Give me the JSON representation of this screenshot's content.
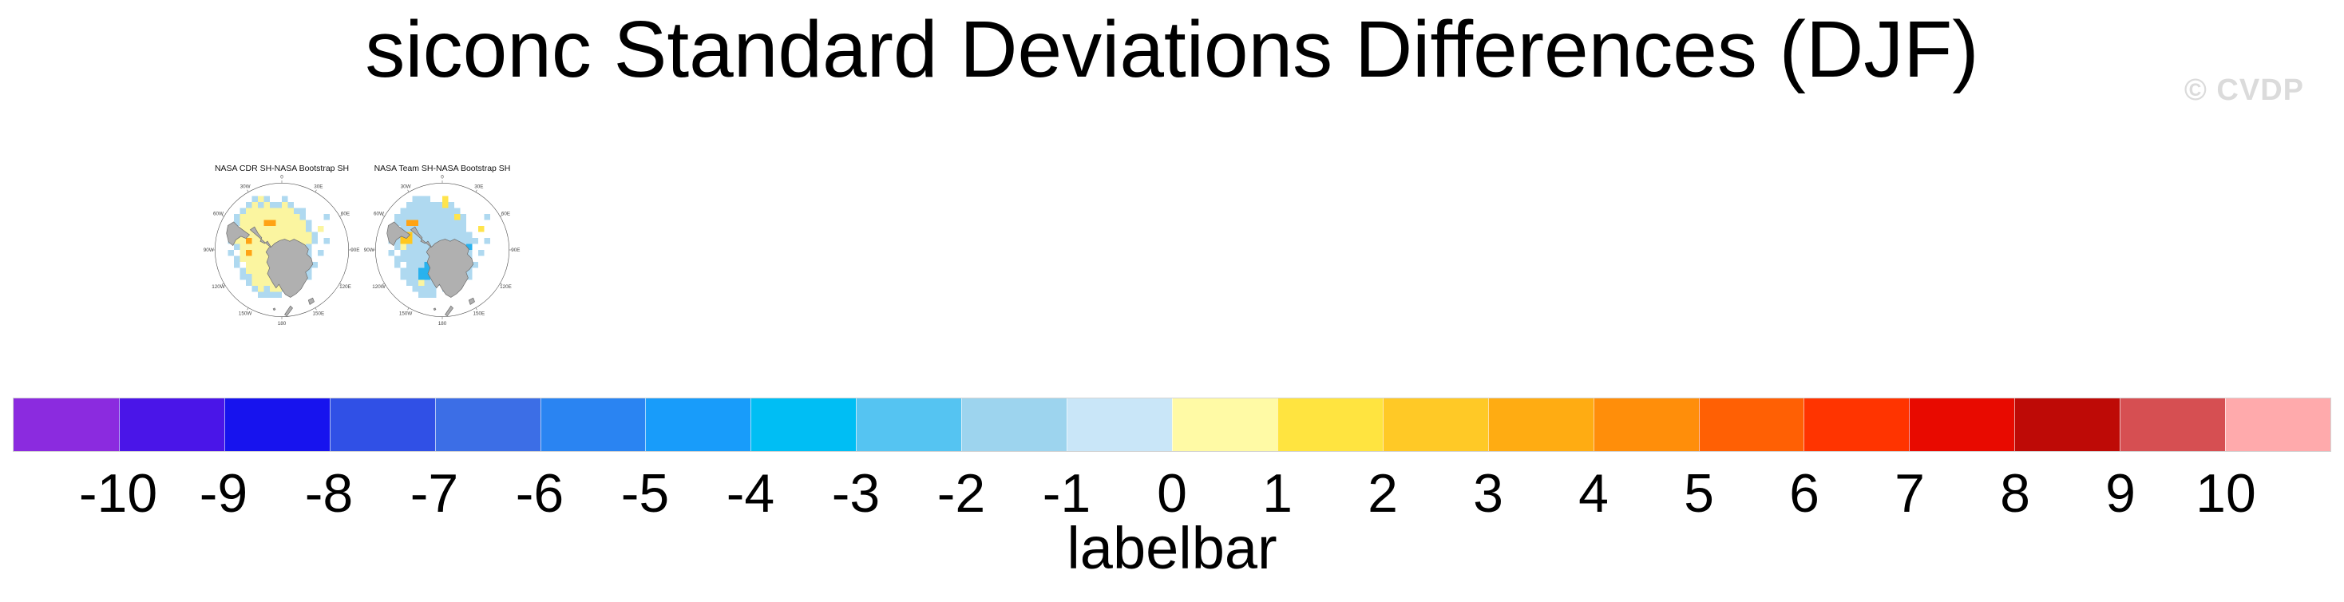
{
  "title": "siconc Standard Deviations Differences (DJF)",
  "watermark": "© CVDP",
  "chart_data": {
    "type": "heatmap",
    "title": "siconc Standard Deviations Differences (DJF)",
    "season": "DJF",
    "variable": "siconc",
    "projection": "south-polar-stereographic",
    "lon_labels": [
      {
        "text": "0",
        "angle_deg": 0
      },
      {
        "text": "30E",
        "angle_deg": 30
      },
      {
        "text": "60E",
        "angle_deg": 60
      },
      {
        "text": "90E",
        "angle_deg": 90
      },
      {
        "text": "120E",
        "angle_deg": 120
      },
      {
        "text": "150E",
        "angle_deg": 150
      },
      {
        "text": "180",
        "angle_deg": 180
      },
      {
        "text": "150W",
        "angle_deg": 210
      },
      {
        "text": "120W",
        "angle_deg": 240
      },
      {
        "text": "90W",
        "angle_deg": 270
      },
      {
        "text": "60W",
        "angle_deg": 300
      },
      {
        "text": "30W",
        "angle_deg": 330
      }
    ],
    "cell_colors": {
      "y": "#FBF5A0",
      "Y": "#FFE44C",
      "g": "#FFC71E",
      "o": "#FFA314",
      "r": "#FF4A00",
      "b": "#AFD9F0",
      "B": "#29B2EE"
    },
    "geo_colors": {
      "land_fill": "#B0B0B0",
      "land_outline": "#6E6E6E",
      "circle_stroke": "#555555",
      "label_color": "#444444"
    },
    "panels": [
      {
        "title": "NASA CDR SH-NASA Bootstrap SH",
        "grid": [
          "........................",
          "........................",
          "........................",
          ".......byb..b...........",
          "......bybybbyb..........",
          ".....byyyyyyyybb........",
          "....byyyyyyyyyyb...b....",
          "....byyyyooyyyyyb.......",
          "...b.yyyyyyyyyyyb.y.....",
          "....byyyyyyyyyyyyb......",
          "...byyoyyyyyyyyyyb.b....",
          "....byyyyyyyyyyyb.......",
          "...b.yoyyyyyyyyyb.b.....",
          "....byyyyyyyyyyyb.......",
          "....b.yyyyyyyyyybb......",
          ".....byyyyyyyyyrb.......",
          ".....bbyyyyyyyyyb.......",
          "......byyyyyyyb.........",
          ".......bybyybb..........",
          "........bbbb............",
          "........................",
          "........................",
          "........................",
          "........................"
        ]
      },
      {
        "title": "NASA Team SH-NASA Bootstrap SH",
        "grid": [
          "........................",
          "........................",
          "........................",
          ".......bbb..Y...........",
          "......bbbbbbYb..........",
          ".....bbbbbbbbbb.........",
          "....bbbbbbbbbbYb...b....",
          "....bboobbbbbbbb........",
          "...b.bbbbbbbbbbb..Y.....",
          "....bggbbbbbbbbbb.......",
          "...bbggbbbbbbbbbbb.b....",
          "....bybbbbbbbbbbB.......",
          "...b.bbbbbbbbbbYb.b.....",
          "....bbbbbbbbbbBbb.......",
          "....b.bbbBBbbbbobb......",
          ".....bbbBBBbbbbyb.......",
          ".....bbbBBbbbbbbb.......",
          "......bbybbbbb..........",
          ".......bbbb.b...........",
          "........bbb.............",
          "........................",
          "........................",
          "........................",
          "........................"
        ]
      }
    ],
    "labelbar": {
      "title": "labelbar",
      "tick_labels": [
        "-10",
        "-9",
        "-8",
        "-7",
        "-6",
        "-5",
        "-4",
        "-3",
        "-2",
        "-1",
        "0",
        "1",
        "2",
        "3",
        "4",
        "5",
        "6",
        "7",
        "8",
        "9",
        "10"
      ],
      "colors": [
        "#8B2BDF",
        "#4A15E8",
        "#1713EE",
        "#3050E6",
        "#3C6EE6",
        "#2A84F2",
        "#189CFA",
        "#00BEF4",
        "#55C4F2",
        "#9DD4EE",
        "#C9E6F8",
        "#FFFAA5",
        "#FFE440",
        "#FFC926",
        "#FFAC12",
        "#FF8E0A",
        "#FF6004",
        "#FF3400",
        "#E80A00",
        "#BE0A06",
        "#D64F52",
        "#FFAAAC"
      ]
    }
  }
}
